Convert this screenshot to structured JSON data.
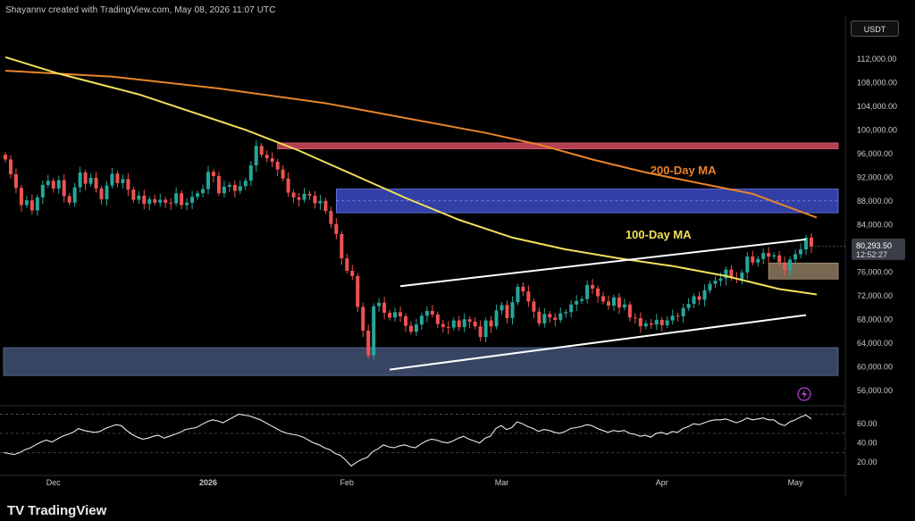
{
  "header": {
    "author_line": "Shayannv created with TradingView.com, May 08, 2026 11:07 UTC"
  },
  "currency": "USDT",
  "footer": {
    "logo_mark": "TV",
    "logo_text": "TradingView"
  },
  "colors": {
    "background": "#000000",
    "candle_up": "#26a69a",
    "candle_down": "#ef5350",
    "ma200": "#e8832a",
    "ma100": "#f2e05a",
    "channel": "#ffffff",
    "supply_zone": "#d34a5c",
    "resistance_zone": "#3f4fd0",
    "demand_zone": "#3d4c6e",
    "support_zone": "#8d7a5f",
    "rsi_line": "#e8eaef",
    "alert_icon": "#b33fd0"
  },
  "icons": {
    "alert": "lightning-alert-icon"
  },
  "chart_data": {
    "type": "candlestick",
    "price_axis": {
      "ticks": [
        112000,
        108000,
        104000,
        100000,
        96000,
        92000,
        88000,
        84000,
        76000,
        72000,
        68000,
        64000,
        60000,
        56000
      ],
      "tick_labels": [
        "112,000.00",
        "108,000.00",
        "104,000.00",
        "100,000.00",
        "96,000.00",
        "92,000.00",
        "88,000.00",
        "84,000.00",
        "76,000.00",
        "72,000.00",
        "68,000.00",
        "64,000.00",
        "60,000.00",
        "56,000.00"
      ],
      "range": [
        54000,
        115000
      ]
    },
    "time_axis": {
      "labels": [
        "Dec",
        "2026",
        "Feb",
        "Mar",
        "Apr",
        "May"
      ]
    },
    "last_price": {
      "price_label": "80,293.50",
      "countdown": "12:52:27",
      "value": 80293.5
    },
    "annotations": {
      "ma200_label": "200-Day MA",
      "ma100_label": "100-Day MA"
    },
    "closes": [
      95000,
      92500,
      90200,
      87300,
      88100,
      86400,
      88600,
      90700,
      91400,
      90100,
      91500,
      88800,
      87700,
      90300,
      92800,
      90900,
      91900,
      90100,
      88300,
      90600,
      92600,
      91000,
      91700,
      89900,
      88200,
      88900,
      87500,
      88300,
      87700,
      88200,
      87700,
      87600,
      89300,
      87300,
      87700,
      88700,
      89300,
      90000,
      92900,
      92200,
      89300,
      90400,
      90700,
      89700,
      90500,
      91400,
      94000,
      97300,
      95800,
      95200,
      94600,
      93300,
      91800,
      89400,
      88600,
      88200,
      89200,
      88900,
      87600,
      88000,
      86300,
      84100,
      82400,
      78300,
      76200,
      75300,
      70100,
      66100,
      61900,
      70200,
      70800,
      69100,
      68300,
      69200,
      68500,
      66900,
      65900,
      67100,
      68600,
      69400,
      68800,
      67200,
      66700,
      66600,
      67800,
      66700,
      68000,
      67600,
      66800,
      65000,
      67800,
      66800,
      69500,
      70400,
      68200,
      70900,
      73500,
      72700,
      71000,
      69300,
      67300,
      68900,
      68300,
      67900,
      69000,
      69200,
      70500,
      71100,
      71400,
      73800,
      73200,
      71900,
      71000,
      70300,
      71700,
      70000,
      70500,
      68300,
      68200,
      66800,
      67300,
      67100,
      67900,
      67000,
      67800,
      68600,
      68500,
      69900,
      70600,
      71900,
      71300,
      72900,
      74000,
      74500,
      74900,
      76400,
      75000,
      74800,
      75900,
      78600,
      77600,
      78200,
      79200,
      78600,
      78800,
      77600,
      76300,
      78100,
      79000,
      79800,
      81800,
      80300
    ],
    "ma200": {
      "name": "200-Day MA",
      "points": [
        [
          0,
          110000
        ],
        [
          20,
          109000
        ],
        [
          40,
          107000
        ],
        [
          60,
          104500
        ],
        [
          75,
          102000
        ],
        [
          90,
          99500
        ],
        [
          100,
          97500
        ],
        [
          110,
          95000
        ],
        [
          120,
          92800
        ],
        [
          130,
          91000
        ],
        [
          140,
          89200
        ],
        [
          152,
          85200
        ]
      ]
    },
    "ma100": {
      "name": "100-Day MA",
      "points": [
        [
          0,
          112300
        ],
        [
          10,
          109500
        ],
        [
          25,
          106000
        ],
        [
          45,
          100000
        ],
        [
          55,
          96500
        ],
        [
          65,
          92500
        ],
        [
          75,
          88500
        ],
        [
          85,
          84800
        ],
        [
          95,
          81800
        ],
        [
          105,
          79800
        ],
        [
          115,
          78300
        ],
        [
          125,
          77000
        ],
        [
          135,
          75300
        ],
        [
          145,
          73100
        ],
        [
          152,
          72200
        ]
      ]
    },
    "channel": {
      "upper": [
        [
          74,
          73600
        ],
        [
          150,
          81500
        ]
      ],
      "lower": [
        [
          72,
          59500
        ],
        [
          150,
          68700
        ]
      ]
    },
    "zones": [
      {
        "name": "supply",
        "from": 96800,
        "to": 97800,
        "x_start": 51
      },
      {
        "name": "resistance",
        "from": 86000,
        "to": 90000,
        "x_start": 62
      },
      {
        "name": "support",
        "from": 74800,
        "to": 77500,
        "x_start": 143
      },
      {
        "name": "demand",
        "from": 58500,
        "to": 63200,
        "x_start": 0
      }
    ],
    "rsi": {
      "ticks": [
        60,
        40,
        20
      ],
      "tick_labels": [
        "60.00",
        "40.00",
        "20.00"
      ],
      "range": [
        10,
        75
      ],
      "dashed_levels": [
        70,
        50,
        30
      ],
      "values": [
        30,
        29,
        28,
        30,
        33,
        35,
        38,
        41,
        43,
        41,
        44,
        47,
        49,
        51,
        55,
        53,
        52,
        51,
        52,
        55,
        57,
        59,
        58,
        53,
        49,
        46,
        44,
        45,
        47,
        48,
        45,
        47,
        49,
        51,
        54,
        55,
        56,
        59,
        62,
        64,
        63,
        61,
        64,
        67,
        70,
        69,
        68,
        66,
        64,
        61,
        58,
        55,
        52,
        50,
        49,
        48,
        46,
        43,
        40,
        38,
        35,
        33,
        29,
        27,
        22,
        16,
        20,
        23,
        25,
        31,
        34,
        38,
        36,
        35,
        37,
        38,
        36,
        35,
        39,
        42,
        44,
        43,
        41,
        40,
        42,
        45,
        47,
        44,
        42,
        40,
        45,
        47,
        55,
        58,
        54,
        56,
        62,
        60,
        57,
        55,
        52,
        54,
        53,
        51,
        50,
        52,
        55,
        56,
        57,
        59,
        58,
        55,
        53,
        51,
        53,
        52,
        53,
        50,
        49,
        47,
        48,
        46,
        50,
        51,
        49,
        52,
        51,
        55,
        57,
        60,
        59,
        61,
        63,
        64,
        64,
        65,
        63,
        61,
        63,
        66,
        64,
        65,
        66,
        64,
        64,
        60,
        58,
        62,
        64,
        67,
        69,
        65
      ]
    }
  }
}
